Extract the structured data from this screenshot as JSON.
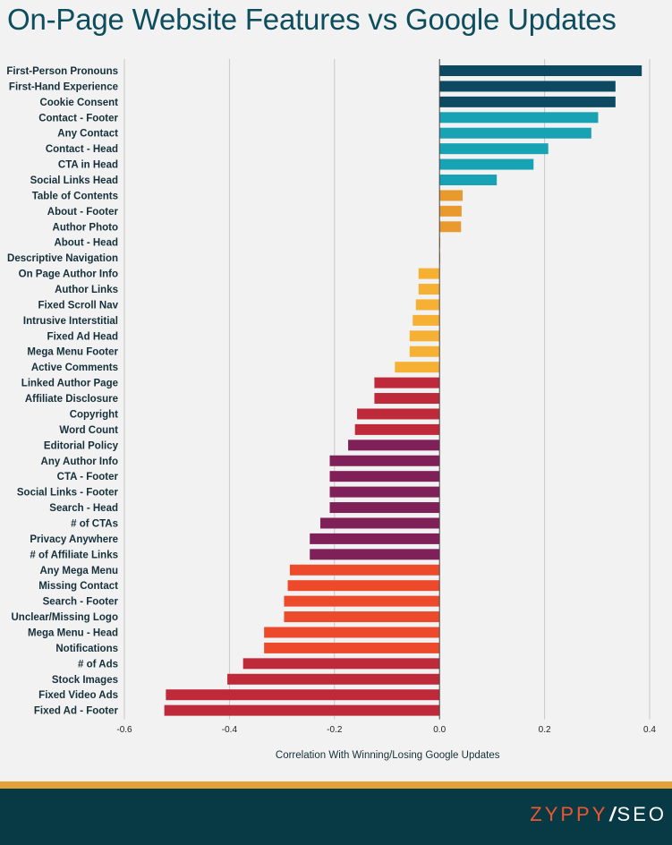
{
  "page": {
    "title": "On-Page Website Features vs Google Updates"
  },
  "logo": {
    "brand": "ZYPPY",
    "separator": "/",
    "product": "SEO",
    "brand_color": "#ef5530"
  },
  "colors": {
    "background": "#f2f2f2",
    "title": "#0d4d5e",
    "footer": "#073a45",
    "footer_stripe": "#e3a13a",
    "gridline": "#c8c8c8"
  },
  "chart_data": {
    "type": "bar",
    "orientation": "horizontal",
    "title": "On-Page Website Features vs Google Updates",
    "xlabel": "Correlation With Winning/Losing Google Updates",
    "ylabel": "",
    "xlim": [
      -0.6,
      0.4
    ],
    "xticks": [
      -0.6,
      -0.4,
      -0.2,
      0.0,
      0.2,
      0.4
    ],
    "xtick_labels": [
      "-0.6",
      "-0.4",
      "-0.2",
      "0.0",
      "0.2",
      "0.4"
    ],
    "grid": "vertical",
    "legend": "none",
    "categories": [
      "First-Person Pronouns",
      "First-Hand Experience",
      "Cookie Consent",
      "Contact - Footer",
      "Any Contact",
      "Contact - Head",
      "CTA in Head",
      "Social Links Head",
      "Table of Contents",
      "About - Footer",
      "Author Photo",
      "About - Head",
      "Descriptive Navigation",
      "On Page Author Info",
      "Author Links",
      "Fixed Scroll Nav",
      "Intrusive Interstitial",
      "Fixed Ad Head",
      "Mega Menu Footer",
      "Active Comments",
      "Linked Author Page",
      "Affiliate Disclosure",
      "Copyright",
      "Word Count",
      "Editorial Policy",
      "Any Author Info",
      "CTA - Footer",
      "Social Links - Footer",
      "Search - Head",
      "# of CTAs",
      "Privacy Anywhere",
      "# of Affiliate Links",
      "Any Mega Menu",
      "Missing Contact",
      "Search - Footer",
      "Unclear/Missing Logo",
      "Mega Menu - Head",
      "Notifications",
      "# of Ads",
      "Stock Images",
      "Fixed Video Ads",
      "Fixed Ad - Footer"
    ],
    "values": [
      0.385,
      0.335,
      0.335,
      0.302,
      0.289,
      0.207,
      0.179,
      0.109,
      0.044,
      0.042,
      0.041,
      0.001,
      0.001,
      -0.04,
      -0.04,
      -0.045,
      -0.051,
      -0.057,
      -0.057,
      -0.085,
      -0.124,
      -0.124,
      -0.157,
      -0.161,
      -0.174,
      -0.209,
      -0.209,
      -0.209,
      -0.209,
      -0.227,
      -0.247,
      -0.247,
      -0.285,
      -0.289,
      -0.296,
      -0.296,
      -0.334,
      -0.334,
      -0.374,
      -0.404,
      -0.521,
      -0.524
    ],
    "bar_colors": [
      "#0d4a62",
      "#0d4a62",
      "#0d4a62",
      "#17a3b3",
      "#17a3b3",
      "#17a3b3",
      "#17a3b3",
      "#17a3b3",
      "#e89a2f",
      "#e89a2f",
      "#e89a2f",
      "#e89a2f",
      "#e89a2f",
      "#f6b034",
      "#f6b034",
      "#f6b034",
      "#f6b034",
      "#f6b034",
      "#f6b034",
      "#f6b034",
      "#bf2a3b",
      "#bf2a3b",
      "#bf2a3b",
      "#bf2a3b",
      "#7f2158",
      "#7f2158",
      "#7f2158",
      "#7f2158",
      "#7f2158",
      "#7f2158",
      "#7f2158",
      "#7f2158",
      "#ed4a2c",
      "#ed4a2c",
      "#ed4a2c",
      "#ed4a2c",
      "#ed4a2c",
      "#ed4a2c",
      "#bf2a3b",
      "#bf2a3b",
      "#bf2a3b",
      "#bf2a3b"
    ]
  }
}
